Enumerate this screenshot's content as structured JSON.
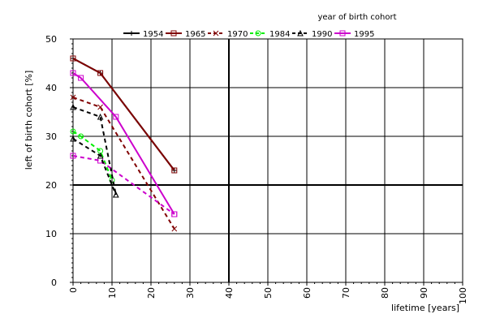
{
  "chart_data": {
    "type": "line",
    "xlabel": "lifetime [years]",
    "ylabel": "left of birth cohort [%]",
    "legend_title": "year of birth cohort",
    "legend_position": "top",
    "xlim": [
      0,
      100
    ],
    "ylim": [
      0,
      50
    ],
    "xticks": [
      "0",
      "10",
      "20",
      "30",
      "40",
      "50",
      "60",
      "70",
      "80",
      "90",
      "100"
    ],
    "yticks": [
      "0",
      "10",
      "20",
      "30",
      "40",
      "50"
    ],
    "grid": true,
    "series": [
      {
        "name": "1954",
        "color": "#000000",
        "marker": "plus",
        "dashed": false,
        "points": [
          [
            0,
            46
          ],
          [
            7,
            43
          ],
          [
            26,
            23
          ]
        ]
      },
      {
        "name": "1965",
        "color": "#800000",
        "marker": "square",
        "dashed": false,
        "points": [
          [
            0,
            46
          ],
          [
            7,
            43
          ],
          [
            26,
            23
          ]
        ]
      },
      {
        "name": "1970",
        "color": "#800000",
        "marker": "cross",
        "dashed": true,
        "points": [
          [
            0,
            38
          ],
          [
            7,
            36
          ],
          [
            26,
            11
          ]
        ]
      },
      {
        "name": "1984",
        "color": "#00ee00",
        "marker": "circle",
        "dashed": true,
        "points": [
          [
            0,
            31
          ],
          [
            2,
            30
          ],
          [
            7,
            27
          ],
          [
            10,
            21
          ]
        ]
      },
      {
        "name": "1990",
        "color": "#000000",
        "marker": "triangle",
        "dashed": true,
        "points": [
          [
            0,
            36
          ],
          [
            7,
            34
          ],
          [
            11,
            18
          ]
        ]
      },
      {
        "name": "1995",
        "color": "#cc00cc",
        "marker": "square",
        "dashed": false,
        "points": [
          [
            0,
            43
          ],
          [
            2,
            42
          ],
          [
            11,
            34
          ],
          [
            26,
            14
          ]
        ]
      },
      {
        "name": "",
        "color": "#cc00cc",
        "marker": "square",
        "dashed": true,
        "points": [
          [
            0,
            26
          ],
          [
            7,
            25
          ],
          [
            26,
            14
          ]
        ]
      },
      {
        "name": "",
        "color": "#000000",
        "marker": "triangle",
        "dashed": true,
        "points": [
          [
            0,
            29.5
          ],
          [
            7,
            26
          ],
          [
            11,
            18
          ]
        ]
      }
    ]
  }
}
